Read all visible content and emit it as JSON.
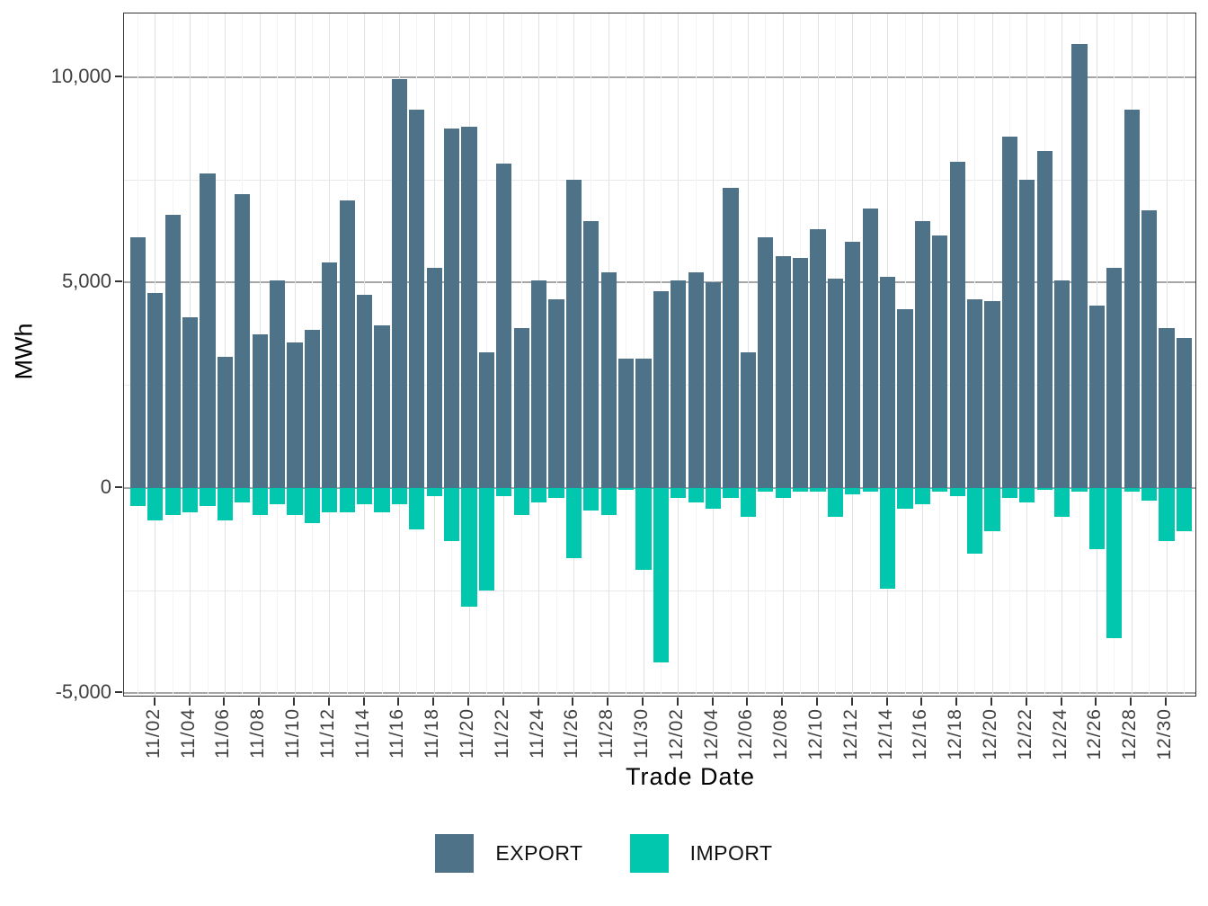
{
  "chart_data": {
    "type": "bar",
    "title": "",
    "xlabel": "Trade Date",
    "ylabel": "MWh",
    "x": [
      "11/01",
      "11/02",
      "11/03",
      "11/04",
      "11/05",
      "11/06",
      "11/07",
      "11/08",
      "11/09",
      "11/10",
      "11/11",
      "11/12",
      "11/13",
      "11/14",
      "11/15",
      "11/16",
      "11/17",
      "11/18",
      "11/19",
      "11/20",
      "11/21",
      "11/22",
      "11/23",
      "11/24",
      "11/25",
      "11/26",
      "11/27",
      "11/28",
      "11/29",
      "11/30",
      "12/01",
      "12/02",
      "12/03",
      "12/04",
      "12/05",
      "12/06",
      "12/07",
      "12/08",
      "12/09",
      "12/10",
      "12/11",
      "12/12",
      "12/13",
      "12/14",
      "12/15",
      "12/16",
      "12/17",
      "12/18",
      "12/19",
      "12/20",
      "12/21",
      "12/22",
      "12/23",
      "12/24",
      "12/25",
      "12/26",
      "12/27",
      "12/28",
      "12/29",
      "12/30",
      "12/31"
    ],
    "x_tick_labels": [
      "11/02",
      "11/04",
      "11/06",
      "11/08",
      "11/10",
      "11/12",
      "11/14",
      "11/16",
      "11/18",
      "11/20",
      "11/22",
      "11/24",
      "11/26",
      "11/28",
      "11/30",
      "12/02",
      "12/04",
      "12/06",
      "12/08",
      "12/10",
      "12/12",
      "12/14",
      "12/16",
      "12/18",
      "12/20",
      "12/22",
      "12/24",
      "12/26",
      "12/28",
      "12/30"
    ],
    "series": [
      {
        "name": "EXPORT",
        "color": "#4E7287",
        "values": [
          6100,
          4750,
          6650,
          4150,
          7650,
          3200,
          7150,
          3750,
          5050,
          3550,
          3850,
          5500,
          7000,
          4700,
          3950,
          9950,
          9200,
          5350,
          8750,
          8800,
          3300,
          7900,
          3900,
          5050,
          4600,
          7500,
          6500,
          5250,
          3150,
          3150,
          4800,
          5050,
          5250,
          5000,
          7300,
          3300,
          6100,
          5650,
          5600,
          6300,
          5100,
          6000,
          6800,
          5150,
          4350,
          6500,
          6150,
          7950,
          4600,
          4550,
          8550,
          7500,
          8200,
          5050,
          10800,
          4450,
          5350,
          9200,
          6750,
          3900,
          3650
        ]
      },
      {
        "name": "IMPORT",
        "color": "#00C7AE",
        "values": [
          -450,
          -800,
          -650,
          -600,
          -450,
          -800,
          -350,
          -650,
          -400,
          -650,
          -850,
          -600,
          -600,
          -400,
          -600,
          -400,
          -1000,
          -200,
          -1300,
          -2900,
          -2500,
          -200,
          -650,
          -350,
          -250,
          -1700,
          -550,
          -650,
          -50,
          -2000,
          -4250,
          -250,
          -350,
          -500,
          -250,
          -700,
          -100,
          -250,
          -100,
          -100,
          -700,
          -150,
          -100,
          -2450,
          -500,
          -400,
          -100,
          -200,
          -1600,
          -1050,
          -250,
          -350,
          -50,
          -700,
          -100,
          -1500,
          -3650,
          -100,
          -300,
          -1300,
          -1050
        ]
      }
    ],
    "ylim": [
      -5100,
      11550
    ],
    "y_ticks": [
      {
        "value": 10000,
        "label": "10,000"
      },
      {
        "value": 5000,
        "label": "5,000"
      },
      {
        "value": 0,
        "label": "0"
      },
      {
        "value": -5000,
        "label": "-5,000"
      }
    ],
    "y_minor": [
      7500,
      2500,
      -2500
    ],
    "grid": "on",
    "legend_position": "bottom"
  },
  "colors": {
    "export": "#4E7287",
    "import": "#00C7AE",
    "grid_major": "#a6a6a6",
    "grid_minor": "#e9e9e9",
    "panel_border": "#333333",
    "tick_text": "#404040"
  }
}
